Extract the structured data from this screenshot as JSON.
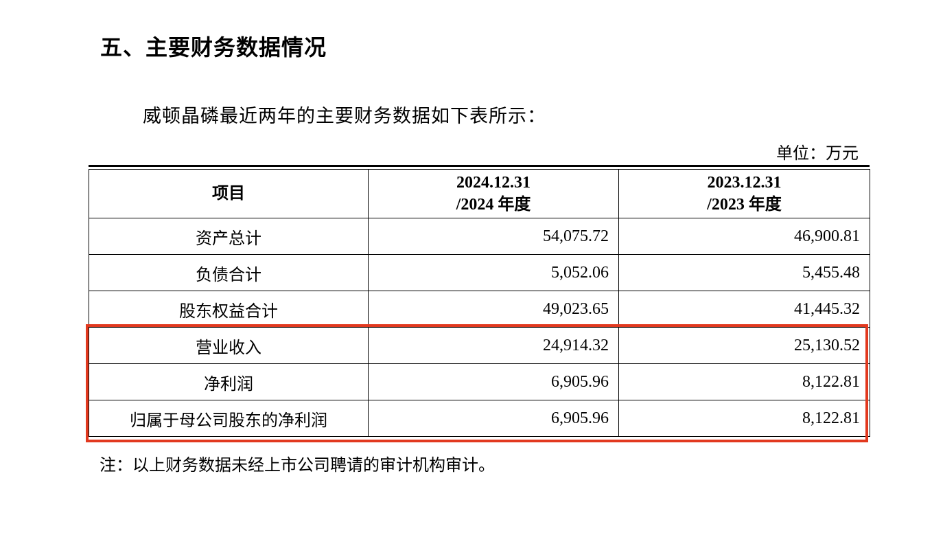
{
  "heading": "五、主要财务数据情况",
  "intro": "威顿晶磷最近两年的主要财务数据如下表所示：",
  "unit": "单位：万元",
  "table": {
    "headers": [
      {
        "line1": "项目",
        "line2": ""
      },
      {
        "line1": "2024.12.31",
        "line2": "/2024 年度"
      },
      {
        "line1": "2023.12.31",
        "line2": "/2023 年度"
      }
    ],
    "rows": [
      {
        "item": "资产总计",
        "v2024": "54,075.72",
        "v2023": "46,900.81"
      },
      {
        "item": "负债合计",
        "v2024": "5,052.06",
        "v2023": "5,455.48"
      },
      {
        "item": "股东权益合计",
        "v2024": "49,023.65",
        "v2023": "41,445.32"
      },
      {
        "item": "营业收入",
        "v2024": "24,914.32",
        "v2023": "25,130.52"
      },
      {
        "item": "净利润",
        "v2024": "6,905.96",
        "v2023": "8,122.81"
      },
      {
        "item": "归属于母公司股东的净利润",
        "v2024": "6,905.96",
        "v2023": "8,122.81"
      }
    ]
  },
  "highlight_color": "#e2391f",
  "note": "注：以上财务数据未经上市公司聘请的审计机构审计。"
}
